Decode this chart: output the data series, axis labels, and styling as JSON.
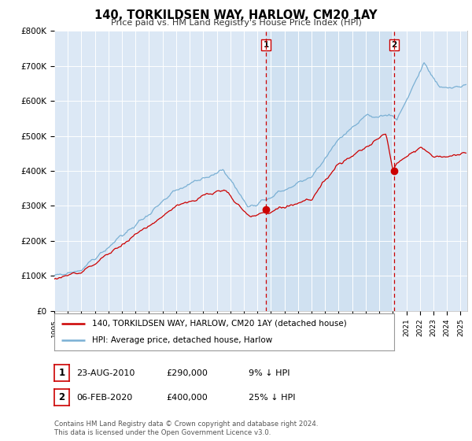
{
  "title": "140, TORKILDSEN WAY, HARLOW, CM20 1AY",
  "subtitle": "Price paid vs. HM Land Registry's House Price Index (HPI)",
  "ylabel_ticks": [
    "£0",
    "£100K",
    "£200K",
    "£300K",
    "£400K",
    "£500K",
    "£600K",
    "£700K",
    "£800K"
  ],
  "ytick_vals": [
    0,
    100000,
    200000,
    300000,
    400000,
    500000,
    600000,
    700000,
    800000
  ],
  "ylim": [
    0,
    800000
  ],
  "xlim_start": 1995.0,
  "xlim_end": 2025.5,
  "legend_label_red": "140, TORKILDSEN WAY, HARLOW, CM20 1AY (detached house)",
  "legend_label_blue": "HPI: Average price, detached house, Harlow",
  "sale1_date": "23-AUG-2010",
  "sale1_price": "£290,000",
  "sale1_hpi": "9% ↓ HPI",
  "sale1_x": 2010.65,
  "sale1_y": 290000,
  "sale2_date": "06-FEB-2020",
  "sale2_price": "£400,000",
  "sale2_hpi": "25% ↓ HPI",
  "sale2_x": 2020.1,
  "sale2_y": 400000,
  "red_color": "#cc0000",
  "blue_color": "#7ab0d4",
  "vline_color": "#cc0000",
  "shade_color": "#ccdff0",
  "footer_text": "Contains HM Land Registry data © Crown copyright and database right 2024.\nThis data is licensed under the Open Government Licence v3.0.",
  "plot_bg_color": "#dce8f5"
}
